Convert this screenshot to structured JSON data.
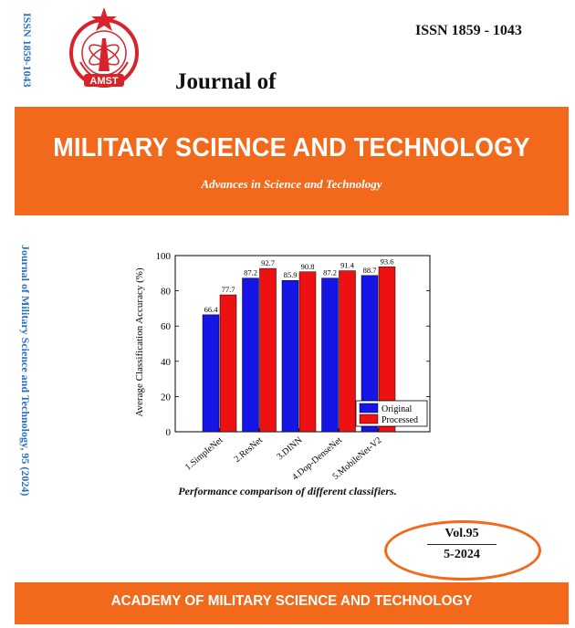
{
  "spine_issn": "ISSN 1859-1043",
  "spine_title": "Journal of Military Science and Technology, 95 (2024)",
  "logo": {
    "label": "AMST",
    "icon": "star-emblem-icon",
    "color": "#d8232a"
  },
  "issn": "ISSN 1859 - 1043",
  "journal_of": "Journal of",
  "banner": {
    "title": "MILITARY SCIENCE AND TECHNOLOGY",
    "subtitle": "Advances in Science and Technology",
    "color": "#f2691b"
  },
  "chart_data": {
    "type": "bar",
    "categories": [
      "1.SimpleNet",
      "2.ResNet",
      "3.DINN",
      "4.Dop-DenseNet",
      "5.MobileNet-V2"
    ],
    "series": [
      {
        "name": "Original",
        "values": [
          66.4,
          87.2,
          85.9,
          87.2,
          88.7
        ],
        "color": "#1515e6"
      },
      {
        "name": "Processed",
        "values": [
          77.7,
          92.7,
          90.8,
          91.4,
          93.6
        ],
        "color": "#ee1111"
      }
    ],
    "ylabel": "Average Classification Accuracy (%)",
    "xlabel": "",
    "ylim": [
      0,
      100
    ],
    "yticks": [
      0,
      20,
      40,
      60,
      80,
      100
    ],
    "legend": "bottom-right"
  },
  "caption": "Performance comparison of different classifiers.",
  "volume": "Vol.95",
  "date": "5-2024",
  "footer": "ACADEMY OF MILITARY SCIENCE AND TECHNOLOGY"
}
